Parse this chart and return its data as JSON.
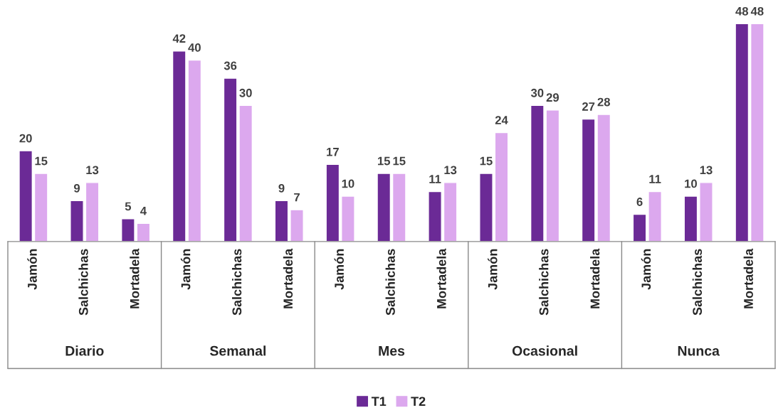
{
  "chart_data": {
    "type": "bar",
    "categories": [
      "Jamón",
      "Salchichas",
      "Mortadela",
      "Jamón",
      "Salchichas",
      "Mortadela",
      "Jamón",
      "Salchichas",
      "Mortadela",
      "Jamón",
      "Salchichas",
      "Mortadela",
      "Jamón",
      "Salchichas",
      "Mortadela"
    ],
    "series": [
      {
        "name": "T1",
        "color": "#6b2a96",
        "values": [
          20,
          9,
          5,
          42,
          36,
          9,
          17,
          15,
          11,
          15,
          30,
          27,
          6,
          10,
          48
        ]
      },
      {
        "name": "T2",
        "color": "#dca8ee",
        "values": [
          15,
          13,
          4,
          40,
          30,
          7,
          10,
          15,
          13,
          24,
          29,
          28,
          11,
          13,
          48
        ]
      }
    ],
    "annotations": [
      "Diario",
      "Semanal",
      "Mes",
      "Ocasional",
      "Nunca"
    ],
    "data_labels": true,
    "legend": "bottom"
  }
}
